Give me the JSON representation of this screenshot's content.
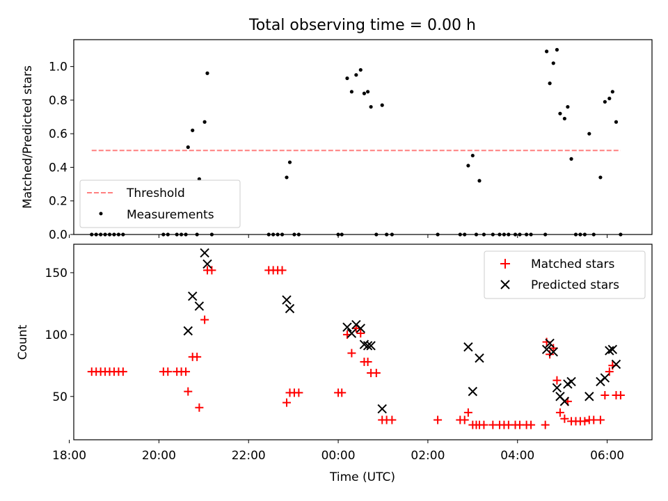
{
  "title": "Total observing time = 0.00 h",
  "colors": {
    "matched": "#ff0000",
    "predicted": "#000000",
    "threshold": "#ff7f7f",
    "measure": "#000000"
  },
  "chart_data": [
    {
      "type": "scatter",
      "title": "Total observing time = 0.00 h",
      "xlabel": "",
      "ylabel": "Matched/Predicted stars",
      "xlim": [
        -5.9,
        7.0
      ],
      "ylim": [
        0,
        1.16
      ],
      "yticks": [
        0.0,
        0.2,
        0.4,
        0.6,
        0.8,
        1.0
      ],
      "ytick_labels": [
        "0.0",
        "0.2",
        "0.4",
        "0.6",
        "0.8",
        "1.0"
      ],
      "legend_position": "bottom-left",
      "legend": [
        "Threshold",
        "Measurements"
      ],
      "threshold": {
        "name": "Threshold",
        "y": 0.5,
        "x": [
          -5.5,
          6.3
        ]
      },
      "series": [
        {
          "name": "Measurements",
          "points": [
            [
              -5.5,
              0
            ],
            [
              -5.4,
              0
            ],
            [
              -5.3,
              0
            ],
            [
              -5.2,
              0
            ],
            [
              -5.1,
              0
            ],
            [
              -5.0,
              0
            ],
            [
              -4.9,
              0
            ],
            [
              -4.8,
              0
            ],
            [
              -3.9,
              0
            ],
            [
              -3.8,
              0
            ],
            [
              -3.6,
              0
            ],
            [
              -3.5,
              0
            ],
            [
              -3.4,
              0
            ],
            [
              -3.35,
              0.52
            ],
            [
              -3.25,
              0.62
            ],
            [
              -3.15,
              0
            ],
            [
              -3.1,
              0.33
            ],
            [
              -2.98,
              0.67
            ],
            [
              -2.92,
              0.96
            ],
            [
              -2.82,
              0
            ],
            [
              -1.55,
              0
            ],
            [
              -1.45,
              0
            ],
            [
              -1.35,
              0
            ],
            [
              -1.25,
              0
            ],
            [
              -1.15,
              0.34
            ],
            [
              -1.08,
              0.43
            ],
            [
              -0.98,
              0
            ],
            [
              -0.88,
              0
            ],
            [
              0.0,
              0
            ],
            [
              0.08,
              0
            ],
            [
              0.2,
              0.93
            ],
            [
              0.3,
              0.85
            ],
            [
              0.4,
              0.95
            ],
            [
              0.5,
              0.98
            ],
            [
              0.58,
              0.84
            ],
            [
              0.66,
              0.85
            ],
            [
              0.73,
              0.76
            ],
            [
              0.85,
              0
            ],
            [
              0.98,
              0.77
            ],
            [
              1.08,
              0
            ],
            [
              1.2,
              0
            ],
            [
              2.22,
              0
            ],
            [
              2.72,
              0
            ],
            [
              2.82,
              0
            ],
            [
              2.9,
              0.41
            ],
            [
              3.0,
              0.47
            ],
            [
              3.08,
              0
            ],
            [
              3.15,
              0.32
            ],
            [
              3.25,
              0
            ],
            [
              3.45,
              0
            ],
            [
              3.6,
              0
            ],
            [
              3.7,
              0
            ],
            [
              3.8,
              0
            ],
            [
              3.95,
              0
            ],
            [
              4.05,
              0
            ],
            [
              4.2,
              0
            ],
            [
              4.3,
              0
            ],
            [
              4.62,
              0
            ],
            [
              4.65,
              1.09
            ],
            [
              4.72,
              0.9
            ],
            [
              4.8,
              1.02
            ],
            [
              4.88,
              1.1
            ],
            [
              4.95,
              0.72
            ],
            [
              5.05,
              0.69
            ],
            [
              5.12,
              0.76
            ],
            [
              5.2,
              0.45
            ],
            [
              5.3,
              0
            ],
            [
              5.4,
              0
            ],
            [
              5.5,
              0
            ],
            [
              5.6,
              0.6
            ],
            [
              5.7,
              0
            ],
            [
              5.85,
              0.34
            ],
            [
              5.95,
              0.79
            ],
            [
              6.05,
              0.81
            ],
            [
              6.12,
              0.85
            ],
            [
              6.2,
              0.67
            ],
            [
              6.3,
              0
            ]
          ]
        }
      ]
    },
    {
      "type": "scatter",
      "title": "",
      "xlabel": "Time (UTC)",
      "ylabel": "Count",
      "xlim": [
        -5.9,
        7.0
      ],
      "ylim": [
        15,
        173
      ],
      "xticks": [
        -6,
        -4,
        -2,
        0,
        2,
        4,
        6
      ],
      "xtick_labels": [
        "18:00",
        "20:00",
        "22:00",
        "00:00",
        "02:00",
        "04:00",
        "06:00"
      ],
      "yticks": [
        50,
        100,
        150
      ],
      "ytick_labels": [
        "50",
        "100",
        "150"
      ],
      "legend_position": "top-right",
      "legend": [
        "Matched stars",
        "Predicted stars"
      ],
      "series": [
        {
          "name": "Matched stars",
          "points": [
            [
              -5.5,
              70
            ],
            [
              -5.4,
              70
            ],
            [
              -5.3,
              70
            ],
            [
              -5.2,
              70
            ],
            [
              -5.1,
              70
            ],
            [
              -5.0,
              70
            ],
            [
              -4.9,
              70
            ],
            [
              -4.8,
              70
            ],
            [
              -3.9,
              70
            ],
            [
              -3.8,
              70
            ],
            [
              -3.6,
              70
            ],
            [
              -3.5,
              70
            ],
            [
              -3.4,
              70
            ],
            [
              -3.35,
              54
            ],
            [
              -3.25,
              82
            ],
            [
              -3.15,
              82
            ],
            [
              -3.1,
              41
            ],
            [
              -2.98,
              112
            ],
            [
              -2.92,
              152
            ],
            [
              -2.82,
              152
            ],
            [
              -1.55,
              152
            ],
            [
              -1.45,
              152
            ],
            [
              -1.35,
              152
            ],
            [
              -1.25,
              152
            ],
            [
              -1.15,
              45
            ],
            [
              -1.08,
              53
            ],
            [
              -0.98,
              53
            ],
            [
              -0.88,
              53
            ],
            [
              0.0,
              53
            ],
            [
              0.08,
              53
            ],
            [
              0.2,
              100
            ],
            [
              0.3,
              85
            ],
            [
              0.4,
              105
            ],
            [
              0.5,
              101
            ],
            [
              0.58,
              78
            ],
            [
              0.66,
              78
            ],
            [
              0.73,
              69
            ],
            [
              0.85,
              69
            ],
            [
              0.98,
              31
            ],
            [
              1.08,
              31
            ],
            [
              1.2,
              31
            ],
            [
              2.22,
              31
            ],
            [
              2.72,
              31
            ],
            [
              2.82,
              31
            ],
            [
              2.9,
              37
            ],
            [
              3.0,
              27
            ],
            [
              3.08,
              27
            ],
            [
              3.15,
              27
            ],
            [
              3.25,
              27
            ],
            [
              3.45,
              27
            ],
            [
              3.6,
              27
            ],
            [
              3.7,
              27
            ],
            [
              3.8,
              27
            ],
            [
              3.95,
              27
            ],
            [
              4.05,
              27
            ],
            [
              4.2,
              27
            ],
            [
              4.3,
              27
            ],
            [
              4.62,
              27
            ],
            [
              4.65,
              94
            ],
            [
              4.72,
              84
            ],
            [
              4.8,
              89
            ],
            [
              4.88,
              63
            ],
            [
              4.95,
              37
            ],
            [
              5.05,
              32
            ],
            [
              5.12,
              46
            ],
            [
              5.2,
              30
            ],
            [
              5.3,
              30
            ],
            [
              5.4,
              30
            ],
            [
              5.5,
              30
            ],
            [
              5.6,
              31
            ],
            [
              5.7,
              31
            ],
            [
              5.85,
              31
            ],
            [
              5.95,
              51
            ],
            [
              6.05,
              70
            ],
            [
              6.12,
              75
            ],
            [
              6.2,
              51
            ],
            [
              6.3,
              51
            ]
          ]
        },
        {
          "name": "Predicted stars",
          "points": [
            [
              -3.35,
              103
            ],
            [
              -3.25,
              131
            ],
            [
              -3.1,
              123
            ],
            [
              -2.98,
              166
            ],
            [
              -2.92,
              157
            ],
            [
              -1.15,
              128
            ],
            [
              -1.08,
              121
            ],
            [
              0.2,
              106
            ],
            [
              0.3,
              101
            ],
            [
              0.4,
              108
            ],
            [
              0.5,
              105
            ],
            [
              0.58,
              92
            ],
            [
              0.66,
              91
            ],
            [
              0.73,
              91
            ],
            [
              0.98,
              40
            ],
            [
              2.9,
              90
            ],
            [
              3.0,
              54
            ],
            [
              3.15,
              81
            ],
            [
              4.65,
              88
            ],
            [
              4.72,
              93
            ],
            [
              4.8,
              86
            ],
            [
              4.88,
              57
            ],
            [
              4.95,
              50
            ],
            [
              5.05,
              46
            ],
            [
              5.12,
              60
            ],
            [
              5.2,
              62
            ],
            [
              5.6,
              50
            ],
            [
              5.85,
              62
            ],
            [
              5.95,
              65
            ],
            [
              6.05,
              87
            ],
            [
              6.12,
              88
            ],
            [
              6.2,
              76
            ]
          ]
        }
      ]
    }
  ]
}
